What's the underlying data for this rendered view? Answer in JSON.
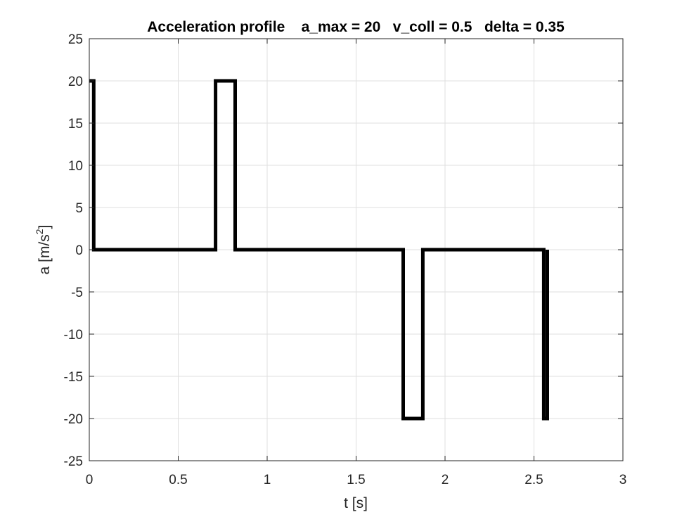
{
  "chart_data": {
    "type": "line",
    "title": "Acceleration profile    a_max = 20   v_coll = 0.5   delta = 0.35",
    "xlabel": "t [s]",
    "ylabel_base": "a [m/s",
    "ylabel_sup": "2",
    "ylabel_close": "]",
    "xlim": [
      0,
      3
    ],
    "ylim": [
      -25,
      25
    ],
    "xticks": [
      0,
      0.5,
      1,
      1.5,
      2,
      2.5,
      3
    ],
    "xtick_labels": [
      "0",
      "0.5",
      "1",
      "1.5",
      "2",
      "2.5",
      "3"
    ],
    "yticks": [
      -25,
      -20,
      -15,
      -10,
      -5,
      0,
      5,
      10,
      15,
      20,
      25
    ],
    "ytick_labels": [
      "-25",
      "-20",
      "-15",
      "-10",
      "-5",
      "0",
      "5",
      "10",
      "15",
      "20",
      "25"
    ],
    "grid": true,
    "line_color": "#000000",
    "series": [
      {
        "x": [
          0,
          0.025,
          0.025,
          0.71,
          0.71,
          0.82,
          0.82,
          1.765,
          1.765,
          1.875,
          1.875,
          2.555,
          2.555,
          2.575,
          2.575
        ],
        "y": [
          20,
          20,
          0,
          0,
          20,
          20,
          0,
          0,
          -20,
          -20,
          0,
          0,
          -20,
          -20,
          0
        ]
      }
    ]
  }
}
